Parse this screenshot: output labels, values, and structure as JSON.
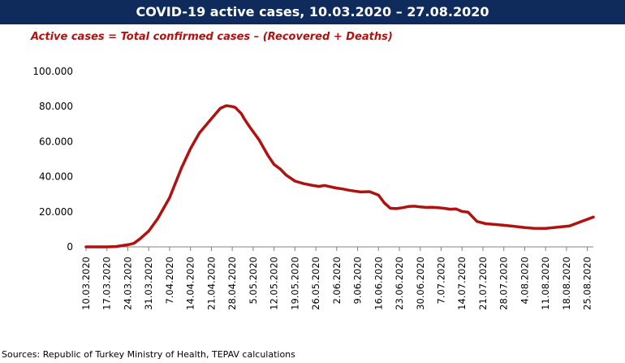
{
  "header": {
    "title": "COVID-19 active cases, 10.03.2020 – 27.08.2020",
    "subtitle": "Active cases = Total confirmed cases – (Recovered + Deaths)"
  },
  "footer": {
    "source": "Sources: Republic of Turkey Ministry of Health, TEPAV calculations"
  },
  "colors": {
    "title_bg": "#0f2b5b",
    "line": "#b01212",
    "subtitle": "#b01212"
  },
  "chart_data": {
    "type": "line",
    "title": "COVID-19 active cases, 10.03.2020 – 27.08.2020",
    "xlabel": "",
    "ylabel": "",
    "ylim": [
      0,
      100000
    ],
    "yticks": [
      0,
      20000,
      40000,
      60000,
      80000,
      100000
    ],
    "ytick_labels": [
      "0",
      "20.000",
      "40.000",
      "60.000",
      "80.000",
      "100.000"
    ],
    "x_tick_labels": [
      "10.03.2020",
      "17.03.2020",
      "24.03.2020",
      "31.03.2020",
      "7.04.2020",
      "14.04.2020",
      "21.04.2020",
      "28.04.2020",
      "5.05.2020",
      "12.05.2020",
      "19.05.2020",
      "26.05.2020",
      "2.06.2020",
      "9.06.2020",
      "16.06.2020",
      "23.06.2020",
      "30.06.2020",
      "7.07.2020",
      "14.07.2020",
      "21.07.2020",
      "28.07.2020",
      "4.08.2020",
      "11.08.2020",
      "18.08.2020",
      "25.08.2020"
    ],
    "day_range": [
      0,
      170
    ],
    "series": [
      {
        "name": "Active cases",
        "x": [
          0,
          7,
          10,
          12,
          14,
          16,
          18,
          21,
          24,
          28,
          32,
          35,
          38,
          42,
          45,
          47,
          49,
          50,
          52,
          53,
          55,
          58,
          61,
          63,
          65,
          67,
          70,
          73,
          76,
          78,
          80,
          82,
          84,
          86,
          88,
          90,
          92,
          95,
          98,
          100,
          102,
          104,
          106,
          108,
          110,
          112,
          114,
          116,
          118,
          120,
          122,
          124,
          126,
          128,
          131,
          134,
          137,
          140,
          143,
          147,
          150,
          154,
          158,
          162,
          166,
          170
        ],
        "values": [
          0,
          0,
          200,
          700,
          1200,
          2000,
          4500,
          9000,
          16000,
          28000,
          45000,
          56000,
          65000,
          73000,
          79000,
          80500,
          80000,
          79500,
          76000,
          73000,
          68000,
          61000,
          52000,
          47000,
          44500,
          41000,
          37500,
          36000,
          35000,
          34500,
          35000,
          34200,
          33500,
          33000,
          32300,
          31800,
          31300,
          31500,
          29500,
          25000,
          22000,
          21800,
          22300,
          23000,
          23200,
          22800,
          22500,
          22600,
          22300,
          22000,
          21500,
          21600,
          20200,
          19800,
          14500,
          13200,
          12800,
          12300,
          11800,
          11000,
          10600,
          10500,
          11200,
          11900,
          14500,
          17000
        ]
      }
    ]
  }
}
